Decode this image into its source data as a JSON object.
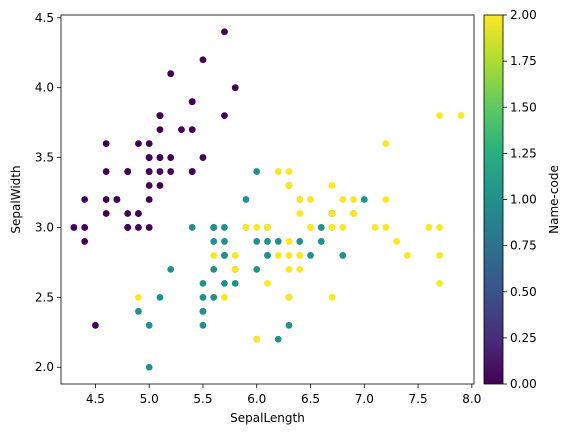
{
  "chart_data": {
    "type": "scatter",
    "xlabel": "SepalLength",
    "ylabel": "SepalWidth",
    "xlim": [
      4.18,
      8.02
    ],
    "ylim": [
      1.88,
      4.52
    ],
    "xticks": [
      "4.5",
      "5.0",
      "5.5",
      "6.0",
      "6.5",
      "7.0",
      "7.5",
      "8.0"
    ],
    "yticks": [
      "2.0",
      "2.5",
      "3.0",
      "3.5",
      "4.0",
      "4.5"
    ],
    "grid": false,
    "colorbar": {
      "label": "Name-code",
      "range": [
        0,
        2
      ],
      "ticks": [
        "0.00",
        "0.25",
        "0.50",
        "0.75",
        "1.00",
        "1.25",
        "1.50",
        "1.75",
        "2.00"
      ],
      "colormap": "viridis"
    },
    "points": [
      {
        "x": 5.1,
        "y": 3.5,
        "c": 0
      },
      {
        "x": 4.9,
        "y": 3.0,
        "c": 0
      },
      {
        "x": 4.7,
        "y": 3.2,
        "c": 0
      },
      {
        "x": 4.6,
        "y": 3.1,
        "c": 0
      },
      {
        "x": 5.0,
        "y": 3.6,
        "c": 0
      },
      {
        "x": 5.4,
        "y": 3.9,
        "c": 0
      },
      {
        "x": 4.6,
        "y": 3.4,
        "c": 0
      },
      {
        "x": 5.0,
        "y": 3.4,
        "c": 0
      },
      {
        "x": 4.4,
        "y": 2.9,
        "c": 0
      },
      {
        "x": 4.9,
        "y": 3.1,
        "c": 0
      },
      {
        "x": 5.4,
        "y": 3.7,
        "c": 0
      },
      {
        "x": 4.8,
        "y": 3.4,
        "c": 0
      },
      {
        "x": 4.8,
        "y": 3.0,
        "c": 0
      },
      {
        "x": 4.3,
        "y": 3.0,
        "c": 0
      },
      {
        "x": 5.8,
        "y": 4.0,
        "c": 0
      },
      {
        "x": 5.7,
        "y": 4.4,
        "c": 0
      },
      {
        "x": 5.4,
        "y": 3.9,
        "c": 0
      },
      {
        "x": 5.1,
        "y": 3.5,
        "c": 0
      },
      {
        "x": 5.7,
        "y": 3.8,
        "c": 0
      },
      {
        "x": 5.1,
        "y": 3.8,
        "c": 0
      },
      {
        "x": 5.4,
        "y": 3.4,
        "c": 0
      },
      {
        "x": 5.1,
        "y": 3.7,
        "c": 0
      },
      {
        "x": 4.6,
        "y": 3.6,
        "c": 0
      },
      {
        "x": 5.1,
        "y": 3.3,
        "c": 0
      },
      {
        "x": 4.8,
        "y": 3.4,
        "c": 0
      },
      {
        "x": 5.0,
        "y": 3.0,
        "c": 0
      },
      {
        "x": 5.0,
        "y": 3.4,
        "c": 0
      },
      {
        "x": 5.2,
        "y": 3.5,
        "c": 0
      },
      {
        "x": 5.2,
        "y": 3.4,
        "c": 0
      },
      {
        "x": 4.7,
        "y": 3.2,
        "c": 0
      },
      {
        "x": 4.8,
        "y": 3.1,
        "c": 0
      },
      {
        "x": 5.4,
        "y": 3.4,
        "c": 0
      },
      {
        "x": 5.2,
        "y": 4.1,
        "c": 0
      },
      {
        "x": 5.5,
        "y": 4.2,
        "c": 0
      },
      {
        "x": 4.9,
        "y": 3.1,
        "c": 0
      },
      {
        "x": 5.0,
        "y": 3.2,
        "c": 0
      },
      {
        "x": 5.5,
        "y": 3.5,
        "c": 0
      },
      {
        "x": 4.9,
        "y": 3.6,
        "c": 0
      },
      {
        "x": 4.4,
        "y": 3.0,
        "c": 0
      },
      {
        "x": 5.1,
        "y": 3.4,
        "c": 0
      },
      {
        "x": 5.0,
        "y": 3.5,
        "c": 0
      },
      {
        "x": 4.5,
        "y": 2.3,
        "c": 0
      },
      {
        "x": 4.4,
        "y": 3.2,
        "c": 0
      },
      {
        "x": 5.0,
        "y": 3.5,
        "c": 0
      },
      {
        "x": 5.1,
        "y": 3.8,
        "c": 0
      },
      {
        "x": 4.8,
        "y": 3.0,
        "c": 0
      },
      {
        "x": 5.1,
        "y": 3.8,
        "c": 0
      },
      {
        "x": 4.6,
        "y": 3.2,
        "c": 0
      },
      {
        "x": 5.3,
        "y": 3.7,
        "c": 0
      },
      {
        "x": 5.0,
        "y": 3.3,
        "c": 0
      },
      {
        "x": 7.0,
        "y": 3.2,
        "c": 1
      },
      {
        "x": 6.4,
        "y": 3.2,
        "c": 1
      },
      {
        "x": 6.9,
        "y": 3.1,
        "c": 1
      },
      {
        "x": 5.5,
        "y": 2.3,
        "c": 1
      },
      {
        "x": 6.5,
        "y": 2.8,
        "c": 1
      },
      {
        "x": 5.7,
        "y": 2.8,
        "c": 1
      },
      {
        "x": 6.3,
        "y": 3.3,
        "c": 1
      },
      {
        "x": 4.9,
        "y": 2.4,
        "c": 1
      },
      {
        "x": 6.6,
        "y": 2.9,
        "c": 1
      },
      {
        "x": 5.2,
        "y": 2.7,
        "c": 1
      },
      {
        "x": 5.0,
        "y": 2.0,
        "c": 1
      },
      {
        "x": 5.9,
        "y": 3.0,
        "c": 1
      },
      {
        "x": 6.0,
        "y": 2.2,
        "c": 1
      },
      {
        "x": 6.1,
        "y": 2.9,
        "c": 1
      },
      {
        "x": 5.6,
        "y": 2.9,
        "c": 1
      },
      {
        "x": 6.7,
        "y": 3.1,
        "c": 1
      },
      {
        "x": 5.6,
        "y": 3.0,
        "c": 1
      },
      {
        "x": 5.8,
        "y": 2.7,
        "c": 1
      },
      {
        "x": 6.2,
        "y": 2.2,
        "c": 1
      },
      {
        "x": 5.6,
        "y": 2.5,
        "c": 1
      },
      {
        "x": 5.9,
        "y": 3.2,
        "c": 1
      },
      {
        "x": 6.1,
        "y": 2.8,
        "c": 1
      },
      {
        "x": 6.3,
        "y": 2.5,
        "c": 1
      },
      {
        "x": 6.1,
        "y": 2.8,
        "c": 1
      },
      {
        "x": 6.4,
        "y": 2.9,
        "c": 1
      },
      {
        "x": 6.6,
        "y": 3.0,
        "c": 1
      },
      {
        "x": 6.8,
        "y": 2.8,
        "c": 1
      },
      {
        "x": 6.7,
        "y": 3.0,
        "c": 1
      },
      {
        "x": 6.0,
        "y": 2.9,
        "c": 1
      },
      {
        "x": 5.7,
        "y": 2.6,
        "c": 1
      },
      {
        "x": 5.5,
        "y": 2.4,
        "c": 1
      },
      {
        "x": 5.5,
        "y": 2.4,
        "c": 1
      },
      {
        "x": 5.8,
        "y": 2.7,
        "c": 1
      },
      {
        "x": 6.0,
        "y": 2.7,
        "c": 1
      },
      {
        "x": 5.4,
        "y": 3.0,
        "c": 1
      },
      {
        "x": 6.0,
        "y": 3.4,
        "c": 1
      },
      {
        "x": 6.7,
        "y": 3.1,
        "c": 1
      },
      {
        "x": 6.3,
        "y": 2.3,
        "c": 1
      },
      {
        "x": 5.6,
        "y": 3.0,
        "c": 1
      },
      {
        "x": 5.5,
        "y": 2.5,
        "c": 1
      },
      {
        "x": 5.5,
        "y": 2.6,
        "c": 1
      },
      {
        "x": 6.1,
        "y": 3.0,
        "c": 1
      },
      {
        "x": 5.8,
        "y": 2.6,
        "c": 1
      },
      {
        "x": 5.0,
        "y": 2.3,
        "c": 1
      },
      {
        "x": 5.6,
        "y": 2.7,
        "c": 1
      },
      {
        "x": 5.7,
        "y": 3.0,
        "c": 1
      },
      {
        "x": 5.7,
        "y": 2.9,
        "c": 1
      },
      {
        "x": 6.2,
        "y": 2.9,
        "c": 1
      },
      {
        "x": 5.1,
        "y": 2.5,
        "c": 1
      },
      {
        "x": 5.7,
        "y": 2.8,
        "c": 1
      },
      {
        "x": 6.3,
        "y": 3.3,
        "c": 2
      },
      {
        "x": 5.8,
        "y": 2.7,
        "c": 2
      },
      {
        "x": 7.1,
        "y": 3.0,
        "c": 2
      },
      {
        "x": 6.3,
        "y": 2.9,
        "c": 2
      },
      {
        "x": 6.5,
        "y": 3.0,
        "c": 2
      },
      {
        "x": 7.6,
        "y": 3.0,
        "c": 2
      },
      {
        "x": 4.9,
        "y": 2.5,
        "c": 2
      },
      {
        "x": 7.3,
        "y": 2.9,
        "c": 2
      },
      {
        "x": 6.7,
        "y": 2.5,
        "c": 2
      },
      {
        "x": 7.2,
        "y": 3.6,
        "c": 2
      },
      {
        "x": 6.5,
        "y": 3.2,
        "c": 2
      },
      {
        "x": 6.4,
        "y": 2.7,
        "c": 2
      },
      {
        "x": 6.8,
        "y": 3.0,
        "c": 2
      },
      {
        "x": 5.7,
        "y": 2.5,
        "c": 2
      },
      {
        "x": 5.8,
        "y": 2.8,
        "c": 2
      },
      {
        "x": 6.4,
        "y": 3.2,
        "c": 2
      },
      {
        "x": 6.5,
        "y": 3.0,
        "c": 2
      },
      {
        "x": 7.7,
        "y": 3.8,
        "c": 2
      },
      {
        "x": 7.7,
        "y": 2.6,
        "c": 2
      },
      {
        "x": 6.0,
        "y": 2.2,
        "c": 2
      },
      {
        "x": 6.9,
        "y": 3.2,
        "c": 2
      },
      {
        "x": 5.6,
        "y": 2.8,
        "c": 2
      },
      {
        "x": 7.7,
        "y": 2.8,
        "c": 2
      },
      {
        "x": 6.3,
        "y": 2.7,
        "c": 2
      },
      {
        "x": 6.7,
        "y": 3.3,
        "c": 2
      },
      {
        "x": 7.2,
        "y": 3.2,
        "c": 2
      },
      {
        "x": 6.2,
        "y": 2.8,
        "c": 2
      },
      {
        "x": 6.1,
        "y": 3.0,
        "c": 2
      },
      {
        "x": 6.4,
        "y": 2.8,
        "c": 2
      },
      {
        "x": 7.2,
        "y": 3.0,
        "c": 2
      },
      {
        "x": 7.4,
        "y": 2.8,
        "c": 2
      },
      {
        "x": 7.9,
        "y": 3.8,
        "c": 2
      },
      {
        "x": 6.4,
        "y": 2.8,
        "c": 2
      },
      {
        "x": 6.3,
        "y": 2.8,
        "c": 2
      },
      {
        "x": 6.1,
        "y": 2.6,
        "c": 2
      },
      {
        "x": 7.7,
        "y": 3.0,
        "c": 2
      },
      {
        "x": 6.3,
        "y": 3.4,
        "c": 2
      },
      {
        "x": 6.4,
        "y": 3.1,
        "c": 2
      },
      {
        "x": 6.0,
        "y": 3.0,
        "c": 2
      },
      {
        "x": 6.9,
        "y": 3.1,
        "c": 2
      },
      {
        "x": 6.7,
        "y": 3.1,
        "c": 2
      },
      {
        "x": 6.9,
        "y": 3.1,
        "c": 2
      },
      {
        "x": 5.8,
        "y": 2.7,
        "c": 2
      },
      {
        "x": 6.8,
        "y": 3.2,
        "c": 2
      },
      {
        "x": 6.7,
        "y": 3.3,
        "c": 2
      },
      {
        "x": 6.7,
        "y": 3.0,
        "c": 2
      },
      {
        "x": 6.3,
        "y": 2.5,
        "c": 2
      },
      {
        "x": 6.5,
        "y": 3.0,
        "c": 2
      },
      {
        "x": 6.2,
        "y": 3.4,
        "c": 2
      },
      {
        "x": 5.9,
        "y": 3.0,
        "c": 2
      }
    ]
  }
}
